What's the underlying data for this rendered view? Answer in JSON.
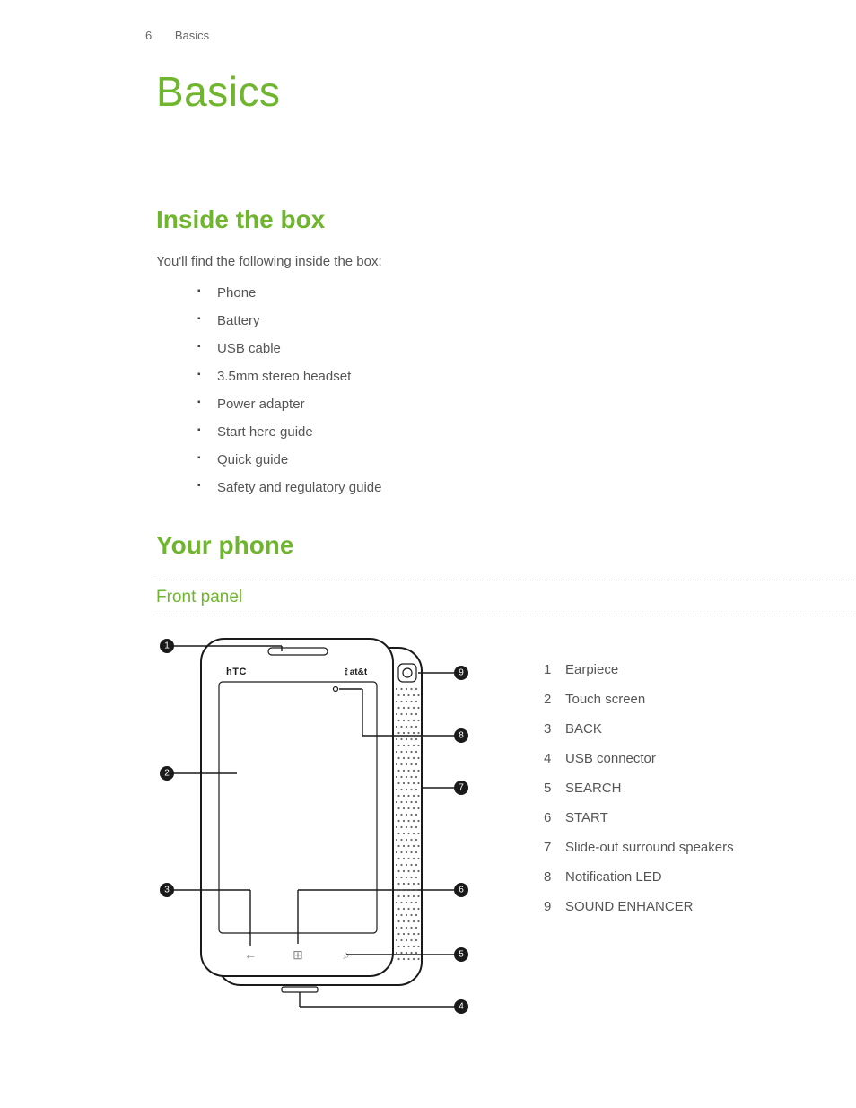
{
  "header": {
    "page_number": "6",
    "section": "Basics"
  },
  "chapter_title": "Basics",
  "sections": {
    "inside_box": {
      "title": "Inside the box",
      "intro": "You'll find the following inside the box:",
      "items": [
        "Phone",
        "Battery",
        "USB cable",
        "3.5mm stereo headset",
        "Power adapter",
        "Start here guide",
        "Quick guide",
        "Safety and regulatory guide"
      ]
    },
    "your_phone": {
      "title": "Your phone",
      "front_panel": {
        "title": "Front panel",
        "brand": "hTC",
        "carrier": "at&t",
        "legend": [
          {
            "n": "1",
            "label": "Earpiece"
          },
          {
            "n": "2",
            "label": "Touch screen"
          },
          {
            "n": "3",
            "label": "BACK"
          },
          {
            "n": "4",
            "label": "USB connector"
          },
          {
            "n": "5",
            "label": "SEARCH"
          },
          {
            "n": "6",
            "label": "START"
          },
          {
            "n": "7",
            "label": "Slide-out surround speakers"
          },
          {
            "n": "8",
            "label": "Notification LED"
          },
          {
            "n": "9",
            "label": "SOUND ENHANCER"
          }
        ],
        "buttons": {
          "back": "←",
          "start": "⊞",
          "search": "⌕"
        }
      }
    }
  },
  "colors": {
    "accent": "#6fb52e",
    "body_text": "#555555",
    "stroke": "#1a1a1a",
    "background": "#ffffff"
  }
}
